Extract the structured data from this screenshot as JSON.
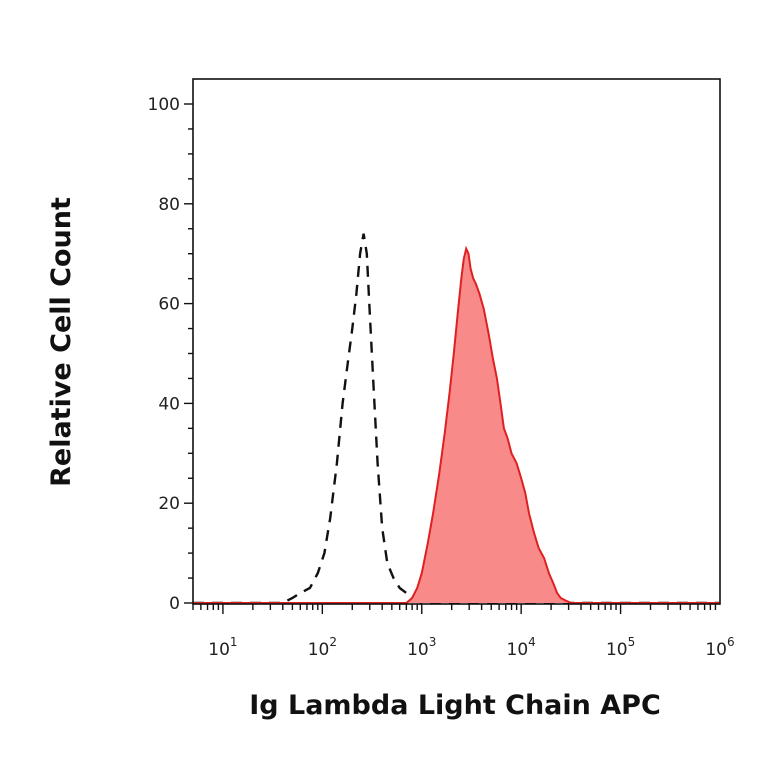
{
  "chart_data": {
    "type": "area",
    "title": "",
    "xlabel": "Ig Lambda Light Chain APC",
    "ylabel": "Relative Cell Count",
    "xscale": "log",
    "xlim": [
      5,
      1000000
    ],
    "ylim": [
      0,
      100
    ],
    "grid": false,
    "x_ticks": [
      {
        "base": "10",
        "exp": "1",
        "value": 10
      },
      {
        "base": "10",
        "exp": "2",
        "value": 100
      },
      {
        "base": "10",
        "exp": "3",
        "value": 1000
      },
      {
        "base": "10",
        "exp": "4",
        "value": 10000
      },
      {
        "base": "10",
        "exp": "5",
        "value": 100000
      },
      {
        "base": "10",
        "exp": "6",
        "value": 1000000
      }
    ],
    "y_ticks": [
      "0",
      "20",
      "40",
      "60",
      "80",
      "100"
    ],
    "series": [
      {
        "style": "dashed",
        "color": "#111111",
        "x": [
          5,
          40,
          50,
          60,
          75,
          90,
          105,
          120,
          140,
          160,
          180,
          200,
          220,
          240,
          260,
          280,
          300,
          330,
          360,
          400,
          450,
          520,
          600,
          700,
          800,
          900,
          1000,
          1200,
          2000,
          100000,
          1000000
        ],
        "y": [
          0,
          0,
          1,
          2,
          3,
          6,
          10,
          17,
          28,
          40,
          48,
          55,
          62,
          70,
          74,
          70,
          58,
          42,
          28,
          15,
          8,
          5,
          3,
          2,
          1,
          0.5,
          0,
          0,
          0,
          0,
          0
        ]
      },
      {
        "style": "filled",
        "color": "#e02020",
        "fill": "#f88a8a",
        "x": [
          5,
          700,
          800,
          900,
          1000,
          1150,
          1300,
          1500,
          1700,
          1900,
          2100,
          2300,
          2500,
          2650,
          2800,
          2950,
          3100,
          3300,
          3500,
          3800,
          4200,
          4700,
          5200,
          5700,
          6200,
          6700,
          7300,
          8000,
          9000,
          10000,
          11000,
          12000,
          13500,
          15000,
          17000,
          19000,
          21000,
          23000,
          25000,
          28000,
          32000,
          40000,
          100000,
          1000000
        ],
        "y": [
          0,
          0,
          1,
          3,
          6,
          12,
          18,
          26,
          34,
          42,
          50,
          58,
          65,
          69,
          71,
          70,
          67,
          65,
          64,
          62,
          59,
          54,
          49,
          45,
          40,
          35,
          33,
          30,
          28,
          25,
          22,
          18,
          14,
          11,
          9,
          6,
          4,
          2,
          1,
          0.5,
          0,
          0,
          0,
          0
        ]
      }
    ]
  }
}
